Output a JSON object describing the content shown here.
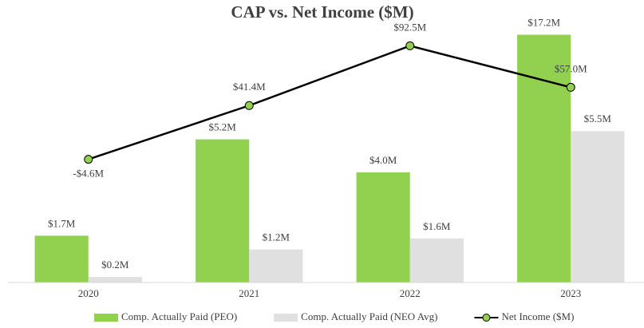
{
  "chart_data": {
    "type": "bar",
    "title": "CAP vs. Net Income ($M)",
    "categories": [
      "2020",
      "2021",
      "2022",
      "2023"
    ],
    "series": [
      {
        "name": "Comp. Actually Paid (PEO)",
        "type": "bar",
        "color": "#92d050",
        "values": [
          1.7,
          5.2,
          4.0,
          17.2
        ],
        "value_labels": [
          "$1.7M",
          "$5.2M",
          "$4.0M",
          "$17.2M"
        ]
      },
      {
        "name": "Comp. Actually Paid (NEO Avg)",
        "type": "bar",
        "color": "#e0e0e0",
        "values": [
          0.2,
          1.2,
          1.6,
          5.5
        ],
        "value_labels": [
          "$0.2M",
          "$1.2M",
          "$1.6M",
          "$5.5M"
        ]
      },
      {
        "name": "Net Income ($M)",
        "type": "line",
        "axis": "y2",
        "color": "#000000",
        "marker_color": "#92d050",
        "values": [
          -4.6,
          41.4,
          92.5,
          57.0
        ],
        "value_labels": [
          "-$4.6M",
          "$41.4M",
          "$92.5M",
          "$57.0M"
        ]
      }
    ],
    "ylim": [
      0,
      9
    ],
    "y2lim": [
      -110,
      102
    ],
    "legend": "bottom"
  }
}
